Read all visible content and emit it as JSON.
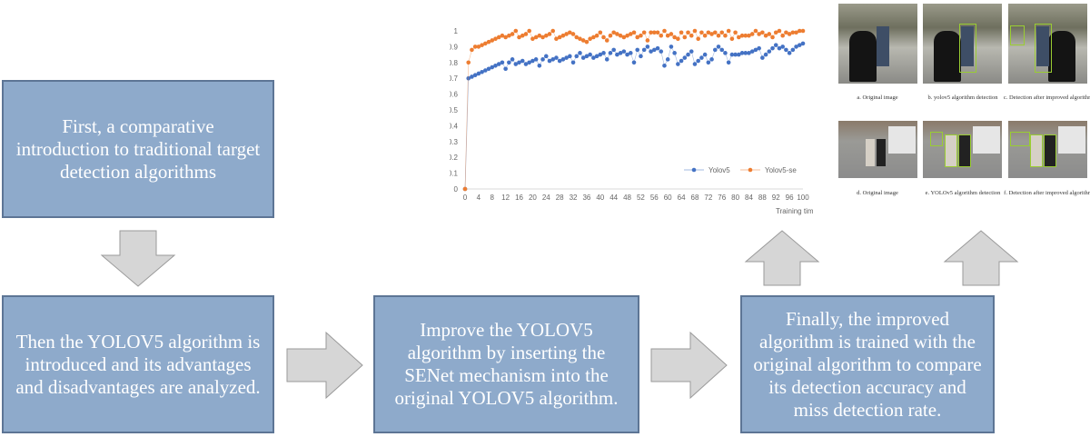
{
  "boxes": {
    "step1": "First, a comparative introduction to traditional target detection algorithms",
    "step2": "Then the YOLOV5 algorithm is introduced and its advantages and disadvantages are analyzed.",
    "step3": "Improve the YOLOV5 algorithm by inserting the SENet mechanism into the original YOLOV5 algorithm.",
    "step4": "Finally, the improved algorithm is trained with the original algorithm to compare its detection accuracy and miss detection rate."
  },
  "colors": {
    "box": "#8eaacb",
    "blue": "#4472c4",
    "orange": "#ed7d31"
  },
  "captions": [
    "a. Original image",
    "b. yolov5 algorithm detection",
    "c. Detection after improved algorithm",
    "d. Original image",
    "e. YOLOv5 algorithm detection",
    "f. Detection after improved algorithm"
  ],
  "chart_data": {
    "type": "line",
    "title": "",
    "xlabel": "Training times",
    "ylabel": "",
    "xlim": [
      0,
      100
    ],
    "ylim": [
      0,
      1
    ],
    "xticks": [
      "0",
      "4",
      "8",
      "12",
      "16",
      "20",
      "24",
      "28",
      "32",
      "36",
      "40",
      "44",
      "48",
      "52",
      "56",
      "60",
      "64",
      "68",
      "72",
      "76",
      "80",
      "84",
      "88",
      "92",
      "96",
      "100"
    ],
    "yticks": [
      "0",
      "0.1",
      "0.2",
      "0.3",
      "0.4",
      "0.5",
      "0.6",
      "0.7",
      "0.8",
      "0.9",
      "1"
    ],
    "legend": "bottom-right",
    "series": [
      {
        "name": "Yolov5",
        "color": "#4472c4",
        "values": [
          0,
          0.7,
          0.71,
          0.72,
          0.73,
          0.74,
          0.75,
          0.76,
          0.77,
          0.78,
          0.79,
          0.8,
          0.76,
          0.8,
          0.82,
          0.79,
          0.8,
          0.81,
          0.79,
          0.8,
          0.81,
          0.82,
          0.78,
          0.82,
          0.84,
          0.81,
          0.82,
          0.83,
          0.81,
          0.82,
          0.83,
          0.84,
          0.8,
          0.84,
          0.86,
          0.83,
          0.84,
          0.85,
          0.83,
          0.84,
          0.85,
          0.86,
          0.82,
          0.86,
          0.88,
          0.85,
          0.86,
          0.87,
          0.85,
          0.86,
          0.8,
          0.88,
          0.84,
          0.88,
          0.9,
          0.87,
          0.88,
          0.89,
          0.87,
          0.78,
          0.82,
          0.9,
          0.86,
          0.79,
          0.81,
          0.83,
          0.85,
          0.87,
          0.79,
          0.81,
          0.83,
          0.85,
          0.8,
          0.82,
          0.88,
          0.9,
          0.88,
          0.86,
          0.8,
          0.85,
          0.85,
          0.85,
          0.86,
          0.86,
          0.86,
          0.87,
          0.88,
          0.89,
          0.83,
          0.85,
          0.87,
          0.89,
          0.91,
          0.89,
          0.9,
          0.88,
          0.86,
          0.88,
          0.9,
          0.91,
          0.92
        ]
      },
      {
        "name": "Yolov5-se",
        "color": "#ed7d31",
        "values": [
          0,
          0.8,
          0.88,
          0.9,
          0.9,
          0.91,
          0.92,
          0.93,
          0.94,
          0.95,
          0.96,
          0.97,
          0.96,
          0.97,
          0.98,
          1.0,
          0.96,
          0.97,
          0.98,
          1.0,
          0.95,
          0.96,
          0.97,
          0.96,
          0.97,
          0.98,
          1.0,
          0.95,
          0.96,
          0.97,
          0.98,
          0.99,
          0.98,
          0.96,
          0.95,
          0.94,
          0.93,
          0.95,
          0.96,
          0.97,
          0.99,
          0.96,
          0.94,
          0.97,
          0.99,
          0.98,
          0.97,
          0.96,
          0.97,
          0.98,
          0.99,
          0.96,
          0.97,
          0.99,
          0.94,
          0.99,
          0.99,
          0.99,
          0.97,
          1.0,
          0.97,
          0.98,
          0.96,
          0.95,
          0.99,
          0.96,
          0.99,
          0.97,
          1.0,
          0.95,
          0.99,
          0.97,
          0.99,
          0.98,
          0.99,
          0.97,
          0.99,
          0.97,
          1.0,
          0.95,
          0.99,
          0.96,
          0.97,
          0.97,
          0.97,
          0.98,
          1.0,
          0.98,
          0.99,
          0.97,
          0.98,
          0.96,
          0.99,
          1.0,
          0.97,
          0.99,
          0.98,
          0.99,
          0.99,
          1.0,
          1.0
        ]
      }
    ]
  }
}
